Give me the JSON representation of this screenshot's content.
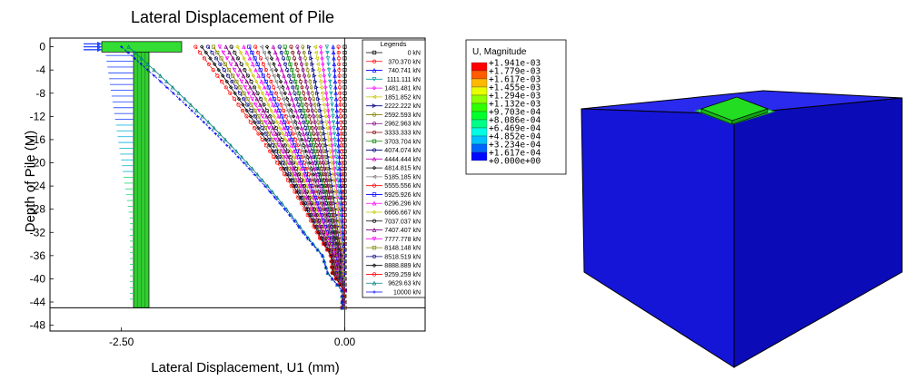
{
  "chart_data": [
    {
      "type": "line",
      "title": "Lateral Displacement of Pile",
      "xlabel": "Lateral Displacement, U1 (mm)",
      "ylabel": "Depth of Pile (M)",
      "xlim": [
        -3.3,
        0.9
      ],
      "ylim": [
        -49,
        1.5
      ],
      "xticks": [
        "-2.50",
        "0.00"
      ],
      "xtick_values": [
        -2.5,
        0.0
      ],
      "yticks": [
        "0",
        "-4",
        "-8",
        "-12",
        "-16",
        "-20",
        "-24",
        "-28",
        "-32",
        "-36",
        "-40",
        "-44",
        "-48"
      ],
      "ytick_values": [
        0,
        -4,
        -8,
        -12,
        -16,
        -20,
        -24,
        -28,
        -32,
        -36,
        -40,
        -44,
        -48
      ],
      "reference_line_y": -45,
      "legend_title": "Legends",
      "legend_position": "top-right",
      "depth": [
        0,
        -3,
        -6,
        -9,
        -12,
        -15,
        -18,
        -21,
        -24,
        -27,
        -30,
        -33,
        -36,
        -39,
        -42,
        -45
      ],
      "series": [
        {
          "name": "0 kN",
          "color": "#000000",
          "marker": "square",
          "tip": 0.0
        },
        {
          "name": "370.370 kN",
          "color": "#ff0000",
          "marker": "circle",
          "tip": -0.07
        },
        {
          "name": "740.741 kN",
          "color": "#0000ff",
          "marker": "triangle",
          "tip": -0.13
        },
        {
          "name": "1111.111 kN",
          "color": "#00a0a0",
          "marker": "triangle-down",
          "tip": -0.2
        },
        {
          "name": "1481.481 kN",
          "color": "#ff00ff",
          "marker": "diamond",
          "tip": -0.27
        },
        {
          "name": "1851.852 kN",
          "color": "#c8c800",
          "marker": "triangle-left",
          "tip": -0.33
        },
        {
          "name": "2222.222 kN",
          "color": "#000080",
          "marker": "triangle-right",
          "tip": -0.4
        },
        {
          "name": "2592.593 kN",
          "color": "#808000",
          "marker": "hexagon",
          "tip": -0.47
        },
        {
          "name": "2962.963 kN",
          "color": "#800080",
          "marker": "star",
          "tip": -0.53
        },
        {
          "name": "3333.333 kN",
          "color": "#800000",
          "marker": "circle",
          "tip": -0.6
        },
        {
          "name": "3703.704 kN",
          "color": "#008000",
          "marker": "square",
          "tip": -0.67
        },
        {
          "name": "4074.074 kN",
          "color": "#000080",
          "marker": "circle",
          "tip": -0.73
        },
        {
          "name": "4444.444 kN",
          "color": "#c000c0",
          "marker": "triangle",
          "tip": -0.8
        },
        {
          "name": "4814.815 kN",
          "color": "#000000",
          "marker": "diamond",
          "tip": -0.87
        },
        {
          "name": "5185.185 kN",
          "color": "#808080",
          "marker": "triangle-left",
          "tip": -0.93
        },
        {
          "name": "5555.556 kN",
          "color": "#ff0000",
          "marker": "circle",
          "tip": -1.0
        },
        {
          "name": "5925.926 kN",
          "color": "#0000ff",
          "marker": "square",
          "tip": -1.07
        },
        {
          "name": "6296.296 kN",
          "color": "#ff00ff",
          "marker": "triangle",
          "tip": -1.13
        },
        {
          "name": "6666.667 kN",
          "color": "#c8c800",
          "marker": "diamond",
          "tip": -1.2
        },
        {
          "name": "7037.037 kN",
          "color": "#000000",
          "marker": "circle",
          "tip": -1.27
        },
        {
          "name": "7407.407 kN",
          "color": "#800080",
          "marker": "triangle",
          "tip": -1.33
        },
        {
          "name": "7777.778 kN",
          "color": "#ff00ff",
          "marker": "triangle-down",
          "tip": -1.4
        },
        {
          "name": "8148.148 kN",
          "color": "#808000",
          "marker": "square",
          "tip": -1.47
        },
        {
          "name": "8518.519 kN",
          "color": "#000080",
          "marker": "circle",
          "tip": -1.53
        },
        {
          "name": "8888.889 kN",
          "color": "#000000",
          "marker": "diamond",
          "tip": -1.6
        },
        {
          "name": "9259.259 kN",
          "color": "#ff0000",
          "marker": "circle",
          "tip": -1.67
        },
        {
          "name": "9629.63 kN",
          "color": "#008080",
          "marker": "triangle",
          "tip": -2.42
        },
        {
          "name": "10000 kN",
          "color": "#0000ff",
          "marker": "cross",
          "tip": -2.5
        }
      ]
    },
    {
      "type": "heatmap",
      "title": "U, Magnitude",
      "legend_position": "top-left",
      "levels": [
        "+1.941e-03",
        "+1.779e-03",
        "+1.617e-03",
        "+1.455e-03",
        "+1.294e-03",
        "+1.132e-03",
        "+9.703e-04",
        "+8.086e-04",
        "+6.469e-04",
        "+4.852e-04",
        "+3.234e-04",
        "+1.617e-04",
        "+0.000e+00"
      ],
      "colors": [
        "#ff0000",
        "#ff5c00",
        "#ffb800",
        "#e8ff00",
        "#8cff00",
        "#30ff00",
        "#00ff2b",
        "#00ff87",
        "#00ffe3",
        "#00c0ff",
        "#0064ff",
        "#0008ff",
        "#0000cc"
      ],
      "model": {
        "block_color": "#1010e0",
        "pile_cap_color": "#22dd22"
      }
    }
  ]
}
